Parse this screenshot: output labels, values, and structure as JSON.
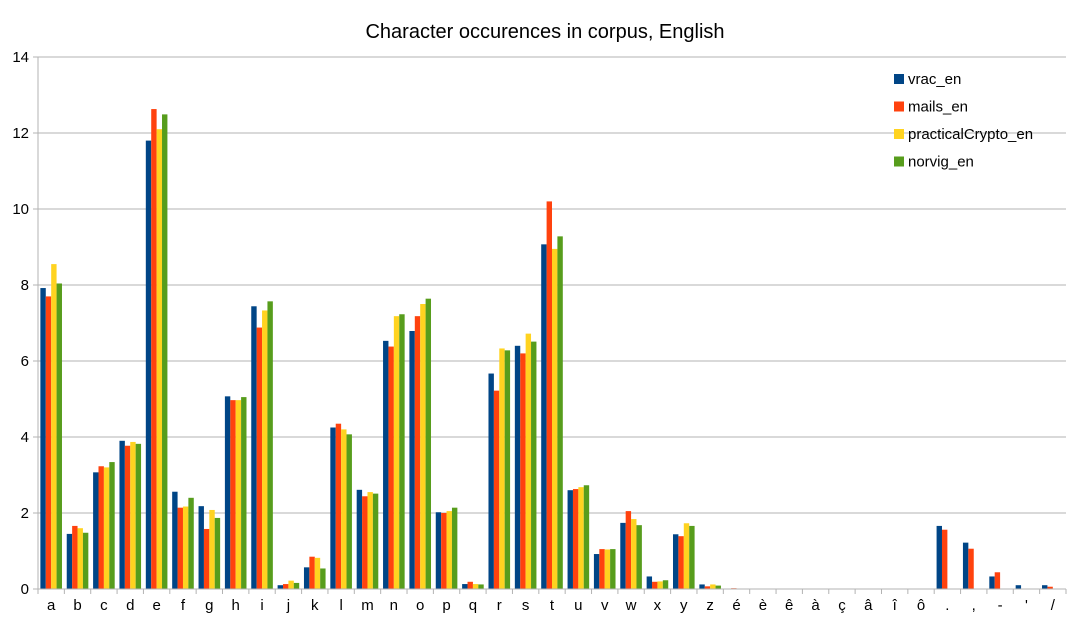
{
  "chart_data": {
    "type": "bar",
    "title": "Character occurences in corpus, English",
    "xlabel": "",
    "ylabel": "",
    "ylim": [
      0,
      14
    ],
    "yticks": [
      0,
      2,
      4,
      6,
      8,
      10,
      12,
      14
    ],
    "grid": true,
    "legend_position": "top-right",
    "categories": [
      "a",
      "b",
      "c",
      "d",
      "e",
      "f",
      "g",
      "h",
      "i",
      "j",
      "k",
      "l",
      "m",
      "n",
      "o",
      "p",
      "q",
      "r",
      "s",
      "t",
      "u",
      "v",
      "w",
      "x",
      "y",
      "z",
      "é",
      "è",
      "ê",
      "à",
      "ç",
      "â",
      "î",
      "ô",
      ".",
      ",",
      "-",
      "'",
      "/"
    ],
    "series": [
      {
        "name": "vrac_en",
        "color": "#004586",
        "values": [
          7.92,
          1.45,
          3.07,
          3.9,
          11.8,
          2.56,
          2.18,
          5.07,
          7.44,
          0.1,
          0.57,
          4.25,
          2.61,
          6.53,
          6.79,
          2.02,
          0.13,
          5.67,
          6.4,
          9.07,
          2.6,
          0.92,
          1.74,
          0.33,
          1.44,
          0.12,
          0,
          0,
          0,
          0,
          0,
          0,
          0,
          0,
          1.66,
          1.22,
          0.33,
          0.1,
          0.1
        ]
      },
      {
        "name": "mails_en",
        "color": "#ff420e",
        "values": [
          7.7,
          1.66,
          3.23,
          3.77,
          12.63,
          2.14,
          1.58,
          4.97,
          6.88,
          0.13,
          0.85,
          4.35,
          2.44,
          6.38,
          7.18,
          2.0,
          0.19,
          5.22,
          6.2,
          10.2,
          2.63,
          1.05,
          2.05,
          0.19,
          1.39,
          0.07,
          0.02,
          0,
          0,
          0,
          0,
          0,
          0,
          0,
          1.56,
          1.06,
          0.44,
          0,
          0.06
        ]
      },
      {
        "name": "practicalCrypto_en",
        "color": "#ffd320",
        "values": [
          8.55,
          1.6,
          3.2,
          3.87,
          12.1,
          2.17,
          2.08,
          4.97,
          7.33,
          0.22,
          0.82,
          4.2,
          2.55,
          7.18,
          7.5,
          2.05,
          0.13,
          6.33,
          6.72,
          8.95,
          2.68,
          1.04,
          1.84,
          0.2,
          1.73,
          0.12,
          0,
          0,
          0,
          0,
          0,
          0,
          0,
          0,
          0,
          0,
          0,
          0,
          0
        ]
      },
      {
        "name": "norvig_en",
        "color": "#579d1c",
        "values": [
          8.04,
          1.48,
          3.34,
          3.82,
          12.49,
          2.4,
          1.87,
          5.05,
          7.57,
          0.16,
          0.54,
          4.07,
          2.51,
          7.23,
          7.64,
          2.14,
          0.12,
          6.28,
          6.51,
          9.28,
          2.73,
          1.05,
          1.68,
          0.23,
          1.66,
          0.09,
          0,
          0,
          0,
          0,
          0,
          0,
          0,
          0,
          0,
          0,
          0,
          0,
          0
        ]
      }
    ]
  }
}
